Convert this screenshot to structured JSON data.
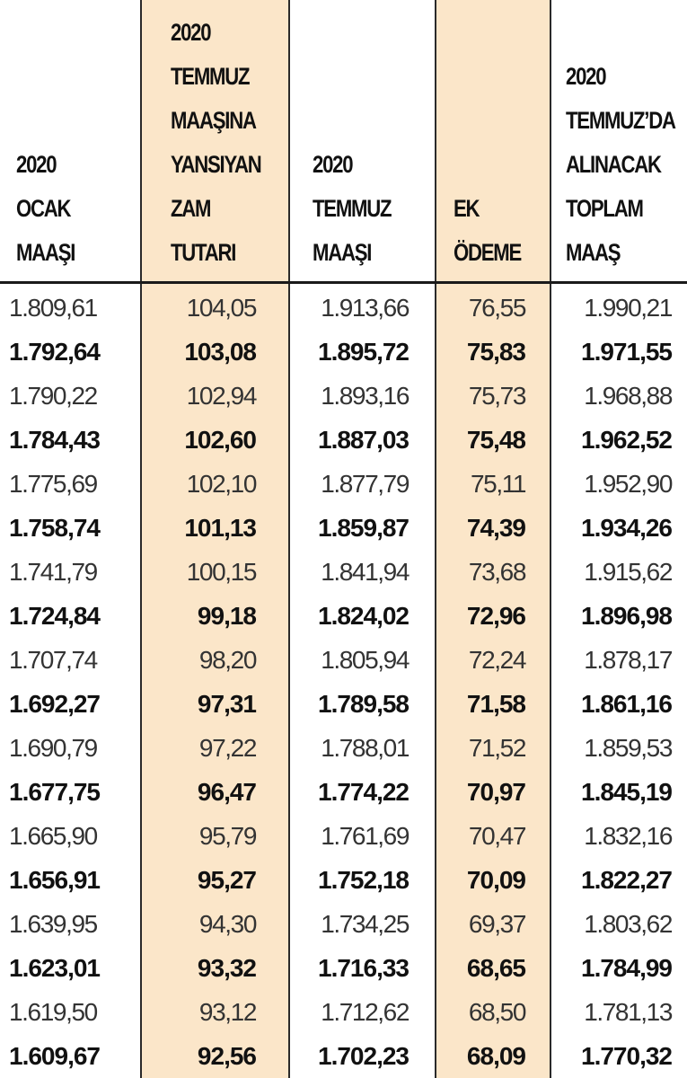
{
  "table": {
    "header": [
      [
        "2020",
        "OCAK",
        "MAAŞI"
      ],
      [
        "2020",
        "TEMMUZ",
        "MAAŞINA",
        "YANSIYAN",
        "ZAM",
        "TUTARI"
      ],
      [
        "2020",
        "TEMMUZ",
        "MAAŞI"
      ],
      [
        "EK",
        "ÖDEME"
      ],
      [
        "2020",
        "TEMMUZ’DA",
        "ALINACAK",
        "TOPLAM",
        "MAAŞ"
      ]
    ],
    "rows": [
      [
        "1.809,61",
        "104,05",
        "1.913,66",
        "76,55",
        "1.990,21"
      ],
      [
        "1.792,64",
        "103,08",
        "1.895,72",
        "75,83",
        "1.971,55"
      ],
      [
        "1.790,22",
        "102,94",
        "1.893,16",
        "75,73",
        "1.968,88"
      ],
      [
        "1.784,43",
        "102,60",
        "1.887,03",
        "75,48",
        "1.962,52"
      ],
      [
        "1.775,69",
        "102,10",
        "1.877,79",
        "75,11",
        "1.952,90"
      ],
      [
        "1.758,74",
        "101,13",
        "1.859,87",
        "74,39",
        "1.934,26"
      ],
      [
        "1.741,79",
        "100,15",
        "1.841,94",
        "73,68",
        "1.915,62"
      ],
      [
        "1.724,84",
        "99,18",
        "1.824,02",
        "72,96",
        "1.896,98"
      ],
      [
        "1.707,74",
        "98,20",
        "1.805,94",
        "72,24",
        "1.878,17"
      ],
      [
        "1.692,27",
        "97,31",
        "1.789,58",
        "71,58",
        "1.861,16"
      ],
      [
        "1.690,79",
        "97,22",
        "1.788,01",
        "71,52",
        "1.859,53"
      ],
      [
        "1.677,75",
        "96,47",
        "1.774,22",
        "70,97",
        "1.845,19"
      ],
      [
        "1.665,90",
        "95,79",
        "1.761,69",
        "70,47",
        "1.832,16"
      ],
      [
        "1.656,91",
        "95,27",
        "1.752,18",
        "70,09",
        "1.822,27"
      ],
      [
        "1.639,95",
        "94,30",
        "1.734,25",
        "69,37",
        "1.803,62"
      ],
      [
        "1.623,01",
        "93,32",
        "1.716,33",
        "68,65",
        "1.784,99"
      ],
      [
        "1.619,50",
        "93,12",
        "1.712,62",
        "68,50",
        "1.781,13"
      ],
      [
        "1.609,67",
        "92,56",
        "1.702,23",
        "68,09",
        "1.770,32"
      ]
    ]
  }
}
